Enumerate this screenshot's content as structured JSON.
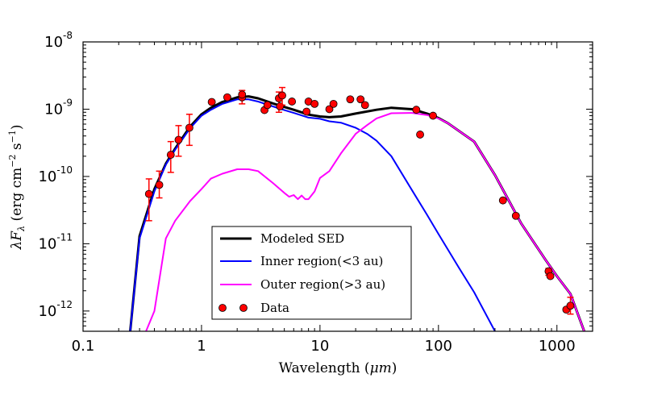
{
  "chart_data": {
    "type": "line",
    "xscale": "log",
    "yscale": "log",
    "xlim": [
      0.1,
      2000
    ],
    "ylim": [
      5e-13,
      1e-08
    ],
    "xlabel_main": "Wavelength (",
    "xlabel_unit": "μm",
    "xlabel_end": ")",
    "ylabel_main": "λF",
    "ylabel_sub": "λ",
    "ylabel_unit_open": " (erg cm",
    "ylabel_exp1": "−2",
    "ylabel_unit_mid": " s",
    "ylabel_exp2": "−1",
    "ylabel_unit_close": ")",
    "x_ticks": [
      {
        "value": 0.1,
        "label": "0.1"
      },
      {
        "value": 1,
        "label": "1"
      },
      {
        "value": 10,
        "label": "10"
      },
      {
        "value": 100,
        "label": "100"
      },
      {
        "value": 1000,
        "label": "1000"
      }
    ],
    "y_ticks": [
      {
        "value": 1e-12,
        "base": "10",
        "exp": "-12"
      },
      {
        "value": 1e-11,
        "base": "10",
        "exp": "-11"
      },
      {
        "value": 1e-10,
        "base": "10",
        "exp": "-10"
      },
      {
        "value": 1e-09,
        "base": "10",
        "exp": "-9"
      },
      {
        "value": 1e-08,
        "base": "10",
        "exp": "-8"
      }
    ],
    "legend_position": "lower-center",
    "series": [
      {
        "name": "Modeled SED",
        "color": "#000000",
        "width": 3,
        "points": [
          [
            0.25,
            5e-13
          ],
          [
            0.3,
            1.3e-11
          ],
          [
            0.4,
            6.5e-11
          ],
          [
            0.5,
            1.55e-10
          ],
          [
            0.6,
            2.6e-10
          ],
          [
            0.8,
            5.5e-10
          ],
          [
            1.0,
            8.4e-10
          ],
          [
            1.2,
            1.05e-09
          ],
          [
            1.5,
            1.28e-09
          ],
          [
            2.0,
            1.5e-09
          ],
          [
            2.5,
            1.55e-09
          ],
          [
            3.0,
            1.45e-09
          ],
          [
            4.0,
            1.22e-09
          ],
          [
            5.0,
            1.08e-09
          ],
          [
            6.0,
            9.8e-10
          ],
          [
            8.0,
            8.3e-10
          ],
          [
            10.0,
            7.8e-10
          ],
          [
            12.0,
            7.6e-10
          ],
          [
            15.0,
            7.8e-10
          ],
          [
            20.0,
            8.6e-10
          ],
          [
            30.0,
            9.8e-10
          ],
          [
            40.0,
            1.05e-09
          ],
          [
            60.0,
            1e-09
          ],
          [
            80.0,
            8.6e-10
          ],
          [
            100.0,
            7.4e-10
          ],
          [
            120.0,
            6.2e-10
          ],
          [
            200.0,
            3.3e-10
          ],
          [
            300.0,
            1.05e-10
          ],
          [
            500.0,
            2e-11
          ],
          [
            800.0,
            5.8e-12
          ],
          [
            1000.0,
            3.3e-12
          ],
          [
            1300.0,
            1.8e-12
          ],
          [
            1700.0,
            5e-13
          ]
        ]
      },
      {
        "name": "Inner region(<3 au)",
        "color": "#0000ff",
        "width": 2,
        "points": [
          [
            0.25,
            5e-13
          ],
          [
            0.3,
            1.2e-11
          ],
          [
            0.4,
            6e-11
          ],
          [
            0.5,
            1.5e-10
          ],
          [
            0.6,
            2.5e-10
          ],
          [
            0.8,
            5.2e-10
          ],
          [
            1.0,
            8e-10
          ],
          [
            1.2,
            9.8e-10
          ],
          [
            1.5,
            1.2e-09
          ],
          [
            2.0,
            1.4e-09
          ],
          [
            2.5,
            1.4e-09
          ],
          [
            3.0,
            1.3e-09
          ],
          [
            4.0,
            1.1e-09
          ],
          [
            5.0,
            9.7e-10
          ],
          [
            6.0,
            8.8e-10
          ],
          [
            8.0,
            7.5e-10
          ],
          [
            10.0,
            7.2e-10
          ],
          [
            12.0,
            6.6e-10
          ],
          [
            15.0,
            6.3e-10
          ],
          [
            20.0,
            5.3e-10
          ],
          [
            25.0,
            4.3e-10
          ],
          [
            30.0,
            3.4e-10
          ],
          [
            40.0,
            2e-10
          ],
          [
            60.0,
            6.2e-11
          ],
          [
            80.0,
            2.7e-11
          ],
          [
            100.0,
            1.4e-11
          ],
          [
            150.0,
            4.3e-12
          ],
          [
            200.0,
            1.9e-12
          ],
          [
            300.0,
            5e-13
          ]
        ]
      },
      {
        "name": "Outer region(>3 au)",
        "color": "#ff00ff",
        "width": 2,
        "points": [
          [
            0.34,
            5e-13
          ],
          [
            0.4,
            1e-12
          ],
          [
            0.5,
            1.2e-11
          ],
          [
            0.6,
            2.2e-11
          ],
          [
            0.8,
            4.3e-11
          ],
          [
            1.0,
            6.5e-11
          ],
          [
            1.2,
            9.3e-11
          ],
          [
            1.5,
            1.1e-10
          ],
          [
            2.0,
            1.28e-10
          ],
          [
            2.5,
            1.28e-10
          ],
          [
            3.0,
            1.2e-10
          ],
          [
            4.0,
            8e-11
          ],
          [
            5.0,
            5.7e-11
          ],
          [
            5.5,
            5e-11
          ],
          [
            6.0,
            5.3e-11
          ],
          [
            6.5,
            4.6e-11
          ],
          [
            7.0,
            5.2e-11
          ],
          [
            7.5,
            4.6e-11
          ],
          [
            8.0,
            4.6e-11
          ],
          [
            9.0,
            6e-11
          ],
          [
            10.0,
            9.5e-11
          ],
          [
            12.0,
            1.2e-10
          ],
          [
            15.0,
            2.2e-10
          ],
          [
            20.0,
            4.3e-10
          ],
          [
            25.0,
            5.8e-10
          ],
          [
            30.0,
            7.3e-10
          ],
          [
            40.0,
            8.7e-10
          ],
          [
            60.0,
            8.8e-10
          ],
          [
            80.0,
            8.2e-10
          ],
          [
            100.0,
            7.3e-10
          ],
          [
            120.0,
            6.2e-10
          ],
          [
            200.0,
            3.3e-10
          ],
          [
            300.0,
            1.05e-10
          ],
          [
            500.0,
            2e-11
          ],
          [
            800.0,
            5.8e-12
          ],
          [
            1000.0,
            3.3e-12
          ],
          [
            1300.0,
            1.8e-12
          ],
          [
            1700.0,
            5e-13
          ]
        ]
      }
    ],
    "data_points": {
      "name": "Data",
      "color": "#ff0000",
      "points": [
        {
          "x": 0.36,
          "y": 5.5e-11,
          "lo": 2.2e-11,
          "hi": 9.2e-11
        },
        {
          "x": 0.44,
          "y": 7.5e-11,
          "lo": 4.8e-11,
          "hi": 1.2e-10
        },
        {
          "x": 0.55,
          "y": 2.1e-10,
          "lo": 1.15e-10,
          "hi": 3.3e-10
        },
        {
          "x": 0.64,
          "y": 3.5e-10,
          "lo": 2e-10,
          "hi": 5.7e-10
        },
        {
          "x": 0.79,
          "y": 5.3e-10,
          "lo": 2.9e-10,
          "hi": 8.4e-10
        },
        {
          "x": 1.22,
          "y": 1.28e-09
        },
        {
          "x": 1.65,
          "y": 1.5e-09
        },
        {
          "x": 2.2,
          "y": 1.5e-09,
          "lo": 1.2e-09,
          "hi": 1.9e-09
        },
        {
          "x": 2.2,
          "y": 1.65e-09
        },
        {
          "x": 3.4,
          "y": 9.7e-10
        },
        {
          "x": 3.6,
          "y": 1.15e-09
        },
        {
          "x": 4.5,
          "y": 1.45e-09,
          "lo": 9e-10,
          "hi": 1.8e-09
        },
        {
          "x": 4.6,
          "y": 1.1e-09
        },
        {
          "x": 4.8,
          "y": 1.6e-09,
          "lo": 1.15e-09,
          "hi": 2.1e-09
        },
        {
          "x": 5.8,
          "y": 1.3e-09
        },
        {
          "x": 7.7,
          "y": 9.2e-10
        },
        {
          "x": 8.0,
          "y": 1.3e-09
        },
        {
          "x": 9.0,
          "y": 1.2e-09
        },
        {
          "x": 12.0,
          "y": 1e-09
        },
        {
          "x": 13.0,
          "y": 1.2e-09
        },
        {
          "x": 18.0,
          "y": 1.4e-09
        },
        {
          "x": 22.0,
          "y": 1.4e-09
        },
        {
          "x": 24.0,
          "y": 1.15e-09
        },
        {
          "x": 65.0,
          "y": 9.8e-10
        },
        {
          "x": 70.0,
          "y": 4.2e-10
        },
        {
          "x": 90.0,
          "y": 8e-10
        },
        {
          "x": 350.0,
          "y": 4.4e-11
        },
        {
          "x": 450.0,
          "y": 2.6e-11
        },
        {
          "x": 850.0,
          "y": 3.9e-12,
          "lo": 3.4e-12,
          "hi": 4.3e-12
        },
        {
          "x": 880.0,
          "y": 3.3e-12
        },
        {
          "x": 1200.0,
          "y": 1.05e-12
        },
        {
          "x": 1300.0,
          "y": 1.2e-12,
          "lo": 9e-13,
          "hi": 1.6e-12
        }
      ]
    }
  }
}
